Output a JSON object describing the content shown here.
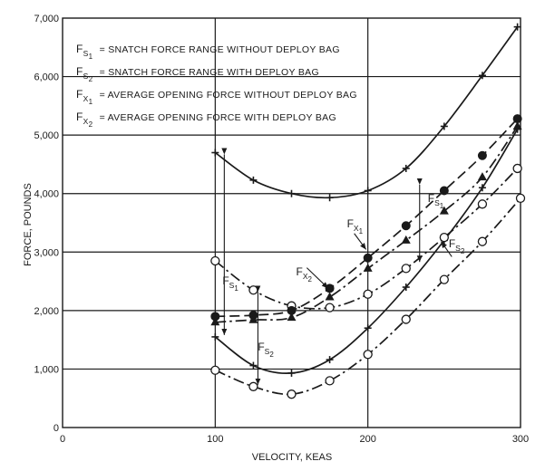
{
  "chart_data": {
    "type": "line",
    "xlabel": "VELOCITY, KEAS",
    "ylabel": "FORCE, POUNDS",
    "xlim": [
      0,
      300
    ],
    "ylim": [
      0,
      7000
    ],
    "x_ticks": [
      "0",
      "100",
      "200",
      "300"
    ],
    "y_ticks": [
      "0",
      "1,000",
      "2,000",
      "3,000",
      "4,000",
      "5,000",
      "6,000",
      "7,000"
    ],
    "grid": true,
    "legend_position": "top-left",
    "legend": [
      {
        "symbol": "F",
        "sub1": "S",
        "sub2": "1",
        "text": "= SNATCH FORCE RANGE WITHOUT DEPLOY BAG"
      },
      {
        "symbol": "F",
        "sub1": "S",
        "sub2": "2",
        "text": "= SNATCH FORCE RANGE WITH DEPLOY BAG"
      },
      {
        "symbol": "F",
        "sub1": "X",
        "sub2": "1",
        "text": "= AVERAGE OPENING FORCE WITHOUT DEPLOY BAG"
      },
      {
        "symbol": "F",
        "sub1": "X",
        "sub2": "2",
        "text": "= AVERAGE OPENING FORCE WITH DEPLOY BAG"
      }
    ],
    "series": [
      {
        "id": "fs1-upper",
        "line": "solid",
        "marker": "cross",
        "x": [
          100,
          125,
          150,
          175,
          200,
          225,
          250,
          275,
          298
        ],
        "y": [
          4700,
          4230,
          4000,
          3930,
          4050,
          4430,
          5150,
          6020,
          6850
        ]
      },
      {
        "id": "fs1-lower",
        "line": "solid",
        "marker": "cross",
        "x": [
          100,
          125,
          150,
          175,
          200,
          225,
          250,
          275,
          298
        ],
        "y": [
          1550,
          1060,
          930,
          1160,
          1700,
          2400,
          3200,
          4100,
          5100
        ]
      },
      {
        "id": "fs2-upper",
        "line": "dashdot",
        "marker": "open-circle",
        "x": [
          100,
          125,
          150,
          175,
          200,
          225,
          250,
          275,
          298
        ],
        "y": [
          2850,
          2350,
          2080,
          2050,
          2280,
          2720,
          3250,
          3820,
          4430
        ]
      },
      {
        "id": "fs2-lower",
        "line": "dashdot",
        "marker": "open-circle",
        "x": [
          100,
          125,
          150,
          175,
          200,
          225,
          250,
          275,
          300
        ],
        "y": [
          980,
          700,
          570,
          800,
          1250,
          1850,
          2530,
          3180,
          3920
        ]
      },
      {
        "id": "fx1",
        "line": "dashed",
        "marker": "filled-circle",
        "x": [
          100,
          125,
          150,
          175,
          200,
          225,
          250,
          275,
          298
        ],
        "y": [
          1900,
          1920,
          2000,
          2380,
          2900,
          3450,
          4050,
          4650,
          5280
        ]
      },
      {
        "id": "fx2",
        "line": "dashdot",
        "marker": "filled-triangle",
        "x": [
          100,
          125,
          150,
          175,
          200,
          225,
          250,
          275,
          298
        ],
        "y": [
          1800,
          1840,
          1880,
          2230,
          2720,
          3200,
          3700,
          4280,
          5150
        ]
      }
    ],
    "annotations": [
      {
        "id": "fs1-left",
        "symbol": "F",
        "sub1": "S",
        "sub2": "1"
      },
      {
        "id": "fs2-left",
        "symbol": "F",
        "sub1": "S",
        "sub2": "2"
      },
      {
        "id": "fx2-label",
        "symbol": "F",
        "sub1": "X",
        "sub2": "2"
      },
      {
        "id": "fx1-label",
        "symbol": "F",
        "sub1": "X",
        "sub2": "1"
      },
      {
        "id": "fs1-right",
        "symbol": "F",
        "sub1": "S",
        "sub2": "1"
      },
      {
        "id": "fs2-right",
        "symbol": "F",
        "sub1": "S",
        "sub2": "2"
      }
    ]
  }
}
